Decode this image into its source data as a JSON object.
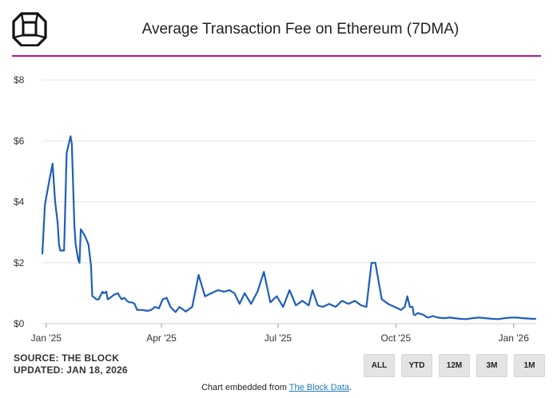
{
  "header": {
    "title": "Average Transaction Fee on Ethereum (7DMA)"
  },
  "colors": {
    "line": "#1f5fb8",
    "divider": "#b0179c",
    "grid": "#e6e6e6"
  },
  "icons": {
    "logo": "the-block-cube-logo-icon"
  },
  "chart_data": {
    "type": "line",
    "title": "Average Transaction Fee on Ethereum (7DMA)",
    "xlabel": "",
    "ylabel": "",
    "ylim": [
      0,
      8
    ],
    "yticks": [
      "$0",
      "$2",
      "$4",
      "$6",
      "$8"
    ],
    "ytick_values": [
      0,
      2,
      4,
      6,
      8
    ],
    "xticks": [
      "Jan '25",
      "Apr '25",
      "Jul '25",
      "Oct '25",
      "Jan '26"
    ],
    "xtick_positions": [
      "2025-01-01",
      "2025-04-01",
      "2025-07-01",
      "2025-10-01",
      "2026-01-01"
    ],
    "xlim": [
      "2024-12-29",
      "2026-01-18"
    ],
    "grid": true,
    "legend": "none",
    "series": [
      {
        "x": [
          "2024-12-29",
          "2024-12-31",
          "2025-01-03",
          "2025-01-06",
          "2025-01-08",
          "2025-01-10",
          "2025-01-11",
          "2025-01-12",
          "2025-01-15",
          "2025-01-17",
          "2025-01-20",
          "2025-01-21",
          "2025-01-23",
          "2025-01-24",
          "2025-01-26",
          "2025-01-27",
          "2025-01-28",
          "2025-01-31",
          "2025-02-03",
          "2025-02-05",
          "2025-02-06",
          "2025-02-08",
          "2025-02-09",
          "2025-02-11",
          "2025-02-14",
          "2025-02-15",
          "2025-02-17",
          "2025-02-18",
          "2025-02-20",
          "2025-02-23",
          "2025-02-26",
          "2025-02-28",
          "2025-03-01",
          "2025-03-03",
          "2025-03-05",
          "2025-03-07",
          "2025-03-09",
          "2025-03-11",
          "2025-03-13",
          "2025-03-15",
          "2025-03-17",
          "2025-03-21",
          "2025-03-24",
          "2025-03-27",
          "2025-03-30",
          "2025-04-02",
          "2025-04-05",
          "2025-04-08",
          "2025-04-12",
          "2025-04-15",
          "2025-04-20",
          "2025-04-25",
          "2025-04-30",
          "2025-05-05",
          "2025-05-10",
          "2025-05-15",
          "2025-05-20",
          "2025-05-24",
          "2025-05-28",
          "2025-06-01",
          "2025-06-05",
          "2025-06-10",
          "2025-06-15",
          "2025-06-20",
          "2025-06-25",
          "2025-06-30",
          "2025-07-05",
          "2025-07-10",
          "2025-07-15",
          "2025-07-20",
          "2025-07-25",
          "2025-07-28",
          "2025-08-01",
          "2025-08-05",
          "2025-08-10",
          "2025-08-15",
          "2025-08-20",
          "2025-08-25",
          "2025-08-30",
          "2025-09-04",
          "2025-09-08",
          "2025-09-12",
          "2025-09-15",
          "2025-09-20",
          "2025-09-25",
          "2025-09-30",
          "2025-10-05",
          "2025-10-08",
          "2025-10-10",
          "2025-10-12",
          "2025-10-14",
          "2025-10-15",
          "2025-10-16",
          "2025-10-18",
          "2025-10-22",
          "2025-10-26",
          "2025-10-30",
          "2025-11-03",
          "2025-11-08",
          "2025-11-12",
          "2025-11-16",
          "2025-11-20",
          "2025-11-25",
          "2025-11-30",
          "2025-12-05",
          "2025-12-10",
          "2025-12-15",
          "2025-12-20",
          "2025-12-25",
          "2025-12-30",
          "2026-01-04",
          "2026-01-08",
          "2026-01-12",
          "2026-01-15",
          "2026-01-18"
        ],
        "values": [
          2.3,
          3.9,
          4.6,
          5.25,
          4.0,
          3.3,
          2.6,
          2.4,
          2.4,
          5.6,
          6.15,
          5.9,
          3.2,
          2.6,
          2.1,
          2.0,
          3.1,
          2.9,
          2.6,
          1.9,
          0.9,
          0.85,
          0.8,
          0.8,
          1.05,
          1.0,
          1.05,
          0.8,
          0.85,
          0.95,
          1.0,
          0.85,
          0.8,
          0.85,
          0.75,
          0.7,
          0.7,
          0.65,
          0.45,
          0.45,
          0.45,
          0.42,
          0.45,
          0.55,
          0.5,
          0.8,
          0.85,
          0.55,
          0.38,
          0.55,
          0.4,
          0.55,
          1.6,
          0.9,
          1.0,
          1.1,
          1.05,
          1.1,
          1.0,
          0.65,
          1.0,
          0.65,
          1.05,
          1.7,
          0.7,
          0.9,
          0.55,
          1.1,
          0.6,
          0.75,
          0.6,
          1.1,
          0.6,
          0.55,
          0.65,
          0.55,
          0.75,
          0.65,
          0.75,
          0.6,
          0.55,
          2.0,
          2.0,
          0.8,
          0.65,
          0.55,
          0.45,
          0.55,
          0.9,
          0.55,
          0.55,
          0.3,
          0.28,
          0.35,
          0.3,
          0.2,
          0.25,
          0.2,
          0.18,
          0.2,
          0.18,
          0.16,
          0.15,
          0.18,
          0.2,
          0.18,
          0.16,
          0.15,
          0.18,
          0.2,
          0.2,
          0.18,
          0.17,
          0.16,
          0.16
        ]
      }
    ]
  },
  "footer": {
    "source": "SOURCE: THE BLOCK",
    "updated": "UPDATED: JAN 18, 2026",
    "range_buttons": [
      "ALL",
      "YTD",
      "12M",
      "3M",
      "1M"
    ],
    "embed_prefix": "Chart embedded from ",
    "embed_link": "The Block Data",
    "embed_suffix": "."
  }
}
